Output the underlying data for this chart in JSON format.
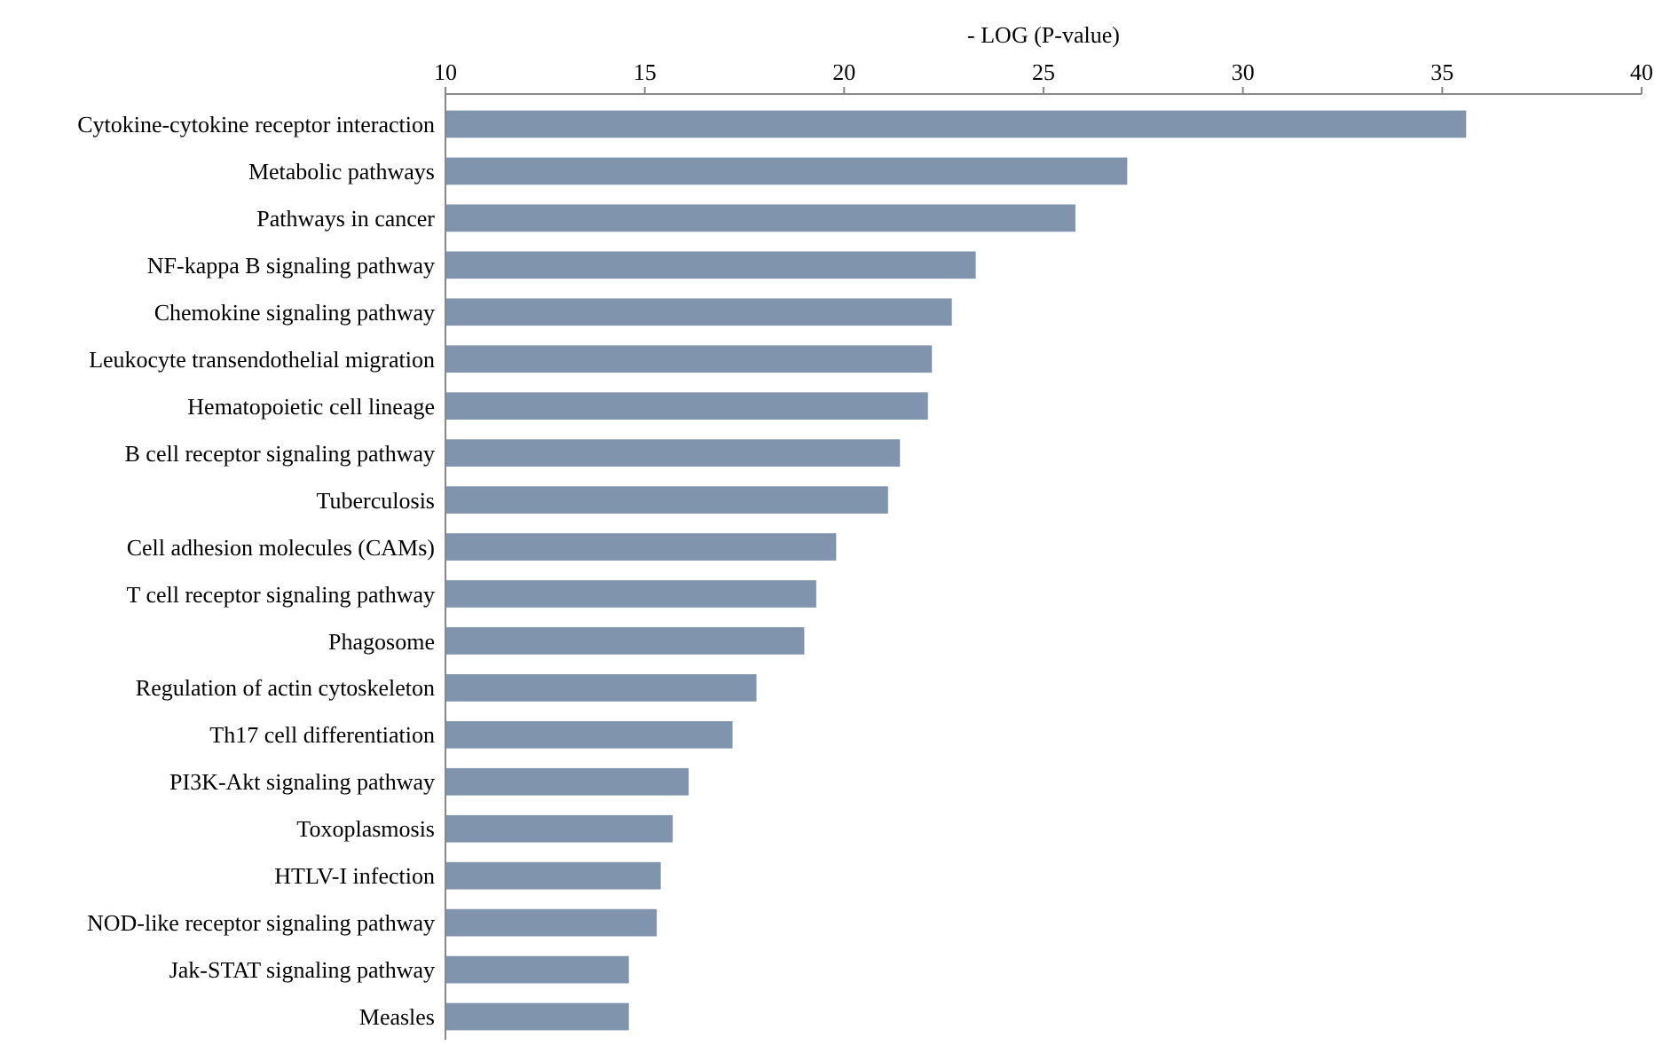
{
  "chart_data": {
    "type": "bar",
    "orientation": "horizontal",
    "xlabel": "- LOG (P-value)",
    "categories": [
      "Cytokine-cytokine receptor interaction",
      "Metabolic pathways",
      "Pathways in cancer",
      "NF-kappa B signaling pathway",
      "Chemokine signaling pathway",
      "Leukocyte transendothelial migration",
      "Hematopoietic cell lineage",
      "B cell receptor signaling pathway",
      "Tuberculosis",
      "Cell adhesion molecules (CAMs)",
      "T cell receptor signaling pathway",
      "Phagosome",
      "Regulation of actin cytoskeleton",
      "Th17 cell differentiation",
      "PI3K-Akt signaling pathway",
      "Toxoplasmosis",
      "HTLV-I infection",
      "NOD-like receptor signaling pathway",
      "Jak-STAT signaling pathway",
      "Measles"
    ],
    "values": [
      35.6,
      27.1,
      25.8,
      23.3,
      22.7,
      22.2,
      22.1,
      21.4,
      21.1,
      19.8,
      19.3,
      19.0,
      17.8,
      17.2,
      16.1,
      15.7,
      15.4,
      15.3,
      14.6,
      14.6
    ],
    "color": "#8094ae",
    "xlim": [
      10,
      40
    ],
    "xticks": [
      10,
      15,
      20,
      25,
      30,
      35,
      40
    ],
    "grid": false
  }
}
